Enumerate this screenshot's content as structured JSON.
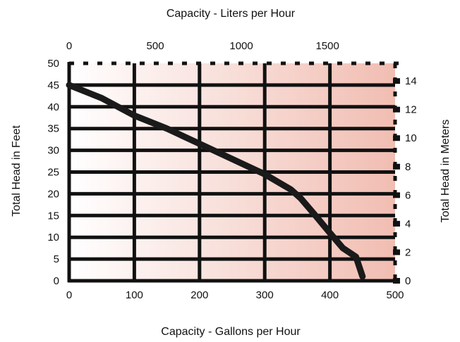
{
  "chart_data": {
    "type": "line",
    "title": "",
    "xlabel": "Capacity - Gallons per Hour",
    "ylabel": "Total Head in Feet",
    "x2label": "Capacity - Liters per Hour",
    "y2label": "Total Head in Meters",
    "xlim": [
      0,
      500
    ],
    "ylim": [
      0,
      50
    ],
    "x2lim_liters": [
      0,
      1892.7
    ],
    "y2lim_meters": [
      0,
      15.24
    ],
    "x_ticks": [
      "0",
      "100",
      "200",
      "300",
      "400",
      "500"
    ],
    "y_ticks": [
      "0",
      "5",
      "10",
      "15",
      "20",
      "25",
      "30",
      "35",
      "40",
      "45",
      "50"
    ],
    "x2_ticks": [
      {
        "label": "0",
        "value": 0
      },
      {
        "label": "500",
        "value": 500
      },
      {
        "label": "1000",
        "value": 1000
      },
      {
        "label": "1500",
        "value": 1500
      }
    ],
    "y2_ticks": [
      {
        "label": "0",
        "value": 0
      },
      {
        "label": "2",
        "value": 2
      },
      {
        "label": "4",
        "value": 4
      },
      {
        "label": "6",
        "value": 6
      },
      {
        "label": "8",
        "value": 8
      },
      {
        "label": "10",
        "value": 10
      },
      {
        "label": "12",
        "value": 12
      },
      {
        "label": "14",
        "value": 14
      }
    ],
    "grid": true,
    "background_gradient": [
      "#ffffff",
      "#f1bdb2"
    ],
    "series": [
      {
        "color": "#1a1a1a",
        "x": [
          0,
          50,
          100,
          150,
          200,
          250,
          300,
          340,
          355,
          375,
          400,
          420,
          440,
          450
        ],
        "y": [
          45,
          42,
          38,
          35,
          31.5,
          28,
          24.5,
          21,
          19,
          15.5,
          11,
          7.5,
          5.5,
          1
        ]
      }
    ]
  }
}
